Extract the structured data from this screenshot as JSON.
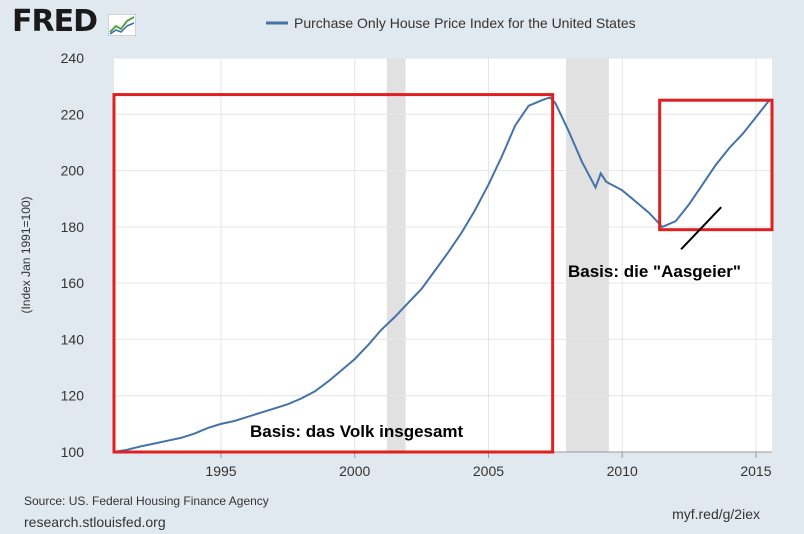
{
  "header": {
    "logo_text": "FRED",
    "logo_icon": "line-graph-icon"
  },
  "colors": {
    "series": "#4572a7",
    "recession": "#e1e1e1",
    "annotation_box": "#e02020",
    "background": "#e1e9f0",
    "plot_background": "#ffffff"
  },
  "footer": {
    "source": "Source: US. Federal Housing Finance Agency",
    "site": "research.stlouisfed.org",
    "short_url": "myf.red/g/2iex"
  },
  "annotations": {
    "left_box_label": "Basis: das Volk insgesamt",
    "right_box_label": "Basis: die \"Aasgeier\""
  },
  "chart_data": {
    "type": "line",
    "title": "",
    "xlabel": "",
    "ylabel": "(Index Jan 1991=100)",
    "xlim": [
      1991.0,
      2015.6
    ],
    "ylim": [
      100,
      240
    ],
    "yticks": [
      100,
      120,
      140,
      160,
      180,
      200,
      220,
      240
    ],
    "xticks": [
      1995,
      2000,
      2005,
      2010,
      2015
    ],
    "grid": true,
    "legend": "top-center",
    "recessions": [
      [
        2001.2,
        2001.9
      ],
      [
        2007.9,
        2009.5
      ]
    ],
    "annotation_boxes": [
      {
        "x_range": [
          1991.0,
          2007.4
        ],
        "y_range": [
          100,
          227
        ]
      },
      {
        "x_range": [
          2011.4,
          2015.6
        ],
        "y_range": [
          179,
          225
        ]
      }
    ],
    "annotation_arrow": {
      "from": [
        2012.2,
        172
      ],
      "to": [
        2013.7,
        187
      ]
    },
    "series": [
      {
        "name": "Purchase Only House Price Index for the United States",
        "x": [
          1991.0,
          1991.5,
          1992.0,
          1992.5,
          1993.0,
          1993.5,
          1994.0,
          1994.5,
          1995.0,
          1995.5,
          1996.0,
          1996.5,
          1997.0,
          1997.5,
          1998.0,
          1998.5,
          1999.0,
          1999.5,
          2000.0,
          2000.5,
          2001.0,
          2001.5,
          2002.0,
          2002.5,
          2003.0,
          2003.5,
          2004.0,
          2004.5,
          2005.0,
          2005.5,
          2006.0,
          2006.5,
          2007.0,
          2007.3,
          2007.5,
          2008.0,
          2008.5,
          2009.0,
          2009.2,
          2009.4,
          2009.6,
          2010.0,
          2010.5,
          2011.0,
          2011.5,
          2012.0,
          2012.5,
          2013.0,
          2013.5,
          2014.0,
          2014.5,
          2015.0,
          2015.5
        ],
        "values": [
          100,
          100.8,
          102,
          103,
          104,
          105,
          106.5,
          108.5,
          110,
          111,
          112.5,
          114,
          115.5,
          117,
          119,
          121.5,
          125,
          129,
          133,
          138,
          143.5,
          148,
          153,
          158,
          164.5,
          171,
          178,
          186,
          195,
          205,
          216,
          223,
          225,
          226,
          224,
          214,
          203,
          194,
          199,
          196,
          195,
          193,
          189,
          185,
          180,
          182,
          188,
          195,
          202,
          208,
          213,
          219,
          225
        ]
      }
    ]
  }
}
